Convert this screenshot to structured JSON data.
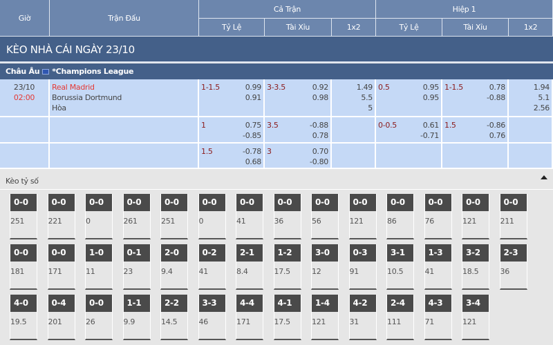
{
  "header": {
    "time": "Giờ",
    "match": "Trận Đấu",
    "full": "Cả Trận",
    "half": "Hiệp 1",
    "cols": [
      "Tỷ Lệ",
      "Tài Xỉu",
      "1x2",
      "Tỷ Lệ",
      "Tài Xỉu",
      "1x2"
    ]
  },
  "title": "KÈO NHÀ CÁI NGÀY 23/10",
  "league": {
    "region": "Châu Âu",
    "name": "*Champions League",
    "flag_icon": "eu-flag-icon"
  },
  "match": {
    "date": "23/10",
    "time": "02:00",
    "home": "Real Madrid",
    "away": "Borussia Dortmund",
    "draw": "Hòa"
  },
  "rows": [
    {
      "ft_hdp": {
        "line": "1-1.5",
        "v": [
          "0.99",
          "0.91"
        ]
      },
      "ft_ou": {
        "line": "3-3.5",
        "v": [
          "0.92",
          "0.98"
        ]
      },
      "ft_1x2": [
        "1.49",
        "5.5",
        "5"
      ],
      "h1_hdp": {
        "line": "0.5",
        "v": [
          "0.95",
          "0.95"
        ]
      },
      "h1_ou": {
        "line": "1-1.5",
        "v": [
          "0.78",
          "-0.88"
        ]
      },
      "h1_1x2": [
        "1.94",
        "5.1",
        "2.56"
      ]
    },
    {
      "ft_hdp": {
        "line": "1",
        "v": [
          "0.75",
          "-0.85"
        ]
      },
      "ft_ou": {
        "line": "3.5",
        "v": [
          "-0.88",
          "0.78"
        ]
      },
      "ft_1x2": [],
      "h1_hdp": {
        "line": "0-0.5",
        "v": [
          "0.61",
          "-0.71"
        ]
      },
      "h1_ou": {
        "line": "1.5",
        "v": [
          "-0.86",
          "0.76"
        ]
      },
      "h1_1x2": []
    },
    {
      "ft_hdp": {
        "line": "1.5",
        "v": [
          "-0.78",
          "0.68"
        ]
      },
      "ft_ou": {
        "line": "3",
        "v": [
          "0.70",
          "-0.80"
        ]
      },
      "ft_1x2": [],
      "h1_hdp": {
        "line": "",
        "v": []
      },
      "h1_ou": {
        "line": "",
        "v": []
      },
      "h1_1x2": []
    }
  ],
  "correct_score": {
    "label": "Kèo tỷ số",
    "toggle_icon": "caret-up-icon",
    "tiles": [
      [
        "0-0",
        "251"
      ],
      [
        "0-0",
        "221"
      ],
      [
        "0-0",
        "0"
      ],
      [
        "0-0",
        "261"
      ],
      [
        "0-0",
        "251"
      ],
      [
        "0-0",
        "0"
      ],
      [
        "0-0",
        "41"
      ],
      [
        "0-0",
        "36"
      ],
      [
        "0-0",
        "56"
      ],
      [
        "0-0",
        "121"
      ],
      [
        "0-0",
        "86"
      ],
      [
        "0-0",
        "76"
      ],
      [
        "0-0",
        "121"
      ],
      [
        "0-0",
        "211"
      ],
      [
        "0-0",
        "181"
      ],
      [
        "0-0",
        "171"
      ],
      [
        "1-0",
        "11"
      ],
      [
        "0-1",
        "23"
      ],
      [
        "2-0",
        "9.4"
      ],
      [
        "0-2",
        "41"
      ],
      [
        "2-1",
        "8.4"
      ],
      [
        "1-2",
        "17.5"
      ],
      [
        "3-0",
        "12"
      ],
      [
        "0-3",
        "91"
      ],
      [
        "3-1",
        "10.5"
      ],
      [
        "1-3",
        "41"
      ],
      [
        "3-2",
        "18.5"
      ],
      [
        "2-3",
        "36"
      ],
      [
        "4-0",
        "19.5"
      ],
      [
        "0-4",
        "201"
      ],
      [
        "0-0",
        "26"
      ],
      [
        "1-1",
        "9.9"
      ],
      [
        "2-2",
        "14.5"
      ],
      [
        "3-3",
        "46"
      ],
      [
        "4-4",
        "171"
      ],
      [
        "4-1",
        "17.5"
      ],
      [
        "1-4",
        "121"
      ],
      [
        "4-2",
        "31"
      ],
      [
        "2-4",
        "111"
      ],
      [
        "4-3",
        "71"
      ],
      [
        "3-4",
        "121"
      ]
    ]
  }
}
